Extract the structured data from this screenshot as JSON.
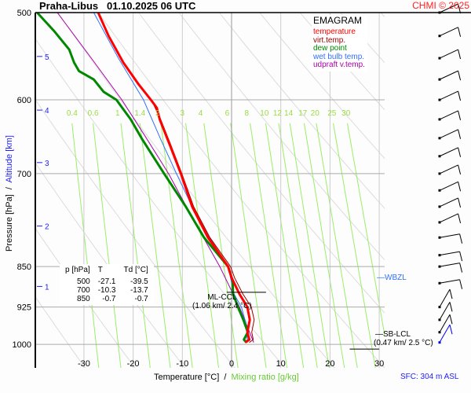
{
  "header": {
    "station": "Praha-Libus",
    "datetime": "01.10.2025 06 UTC",
    "copyright": "CHMI © 2025"
  },
  "legend": {
    "title": "EMAGRAM",
    "items": [
      {
        "label": "temperature",
        "color": "#ff0000"
      },
      {
        "label": "virt.temp.",
        "color": "#990000"
      },
      {
        "label": "dew point",
        "color": "#008800"
      },
      {
        "label": "wet bulb temp.",
        "color": "#3070ff"
      },
      {
        "label": "udpraft v.temp.",
        "color": "#aa00aa"
      }
    ]
  },
  "table": {
    "headers": [
      "p [hPa]",
      "T",
      "Td [°C]"
    ],
    "rows": [
      [
        "500",
        "-27.1",
        "-39.5"
      ],
      [
        "700",
        "-10.3",
        "-13.7"
      ],
      [
        "850",
        "-0.7",
        "-0.7"
      ]
    ]
  },
  "annotations": {
    "ml_ccl": "ML-CCL",
    "ml_ccl_val": "(1.06 km/ 2.4 °C)",
    "sb_lcl": "SB-LCL",
    "sb_lcl_val": "(0.47 km/ 2.5 °C)",
    "wbzl": "WBZL",
    "sfc": "SFC: 304 m ASL"
  },
  "chart_data": {
    "type": "line",
    "title": "EMAGRAM",
    "xlabel": "Temperature [°C]",
    "xlabel2": "Mixing ratio [g/kg]",
    "ylabel": "Pressure [hPa]",
    "ylabel2": "Altitude [km]",
    "xlim": [
      -40,
      32
    ],
    "ylim": [
      1050,
      500
    ],
    "yscale": "log",
    "xticks": [
      "-30",
      "-20",
      "-10",
      "0",
      "10",
      "20",
      "30"
    ],
    "yticks": [
      "500",
      "600",
      "700",
      "850",
      "925",
      "1000"
    ],
    "alt_ticks": [
      {
        "km": "5",
        "p": 548
      },
      {
        "km": "4",
        "p": 613
      },
      {
        "km": "3",
        "p": 684
      },
      {
        "km": "2",
        "p": 781
      },
      {
        "km": "1",
        "p": 886
      }
    ],
    "mixing_ratio_labels": [
      "0.4",
      "0.6",
      "1",
      "1.4",
      "2",
      "3",
      "4",
      "6",
      "8",
      "10",
      "12",
      "14",
      "17",
      "20",
      "25",
      "30"
    ],
    "series": [
      {
        "name": "temperature",
        "color": "#ff0000",
        "points": [
          [
            -27.1,
            500
          ],
          [
            -25,
            525
          ],
          [
            -22,
            555
          ],
          [
            -19,
            580
          ],
          [
            -16.4,
            600
          ],
          [
            -15.2,
            610
          ],
          [
            -14.6,
            625
          ],
          [
            -12.5,
            660
          ],
          [
            -10.3,
            700
          ],
          [
            -8,
            750
          ],
          [
            -4.8,
            800
          ],
          [
            -0.7,
            850
          ],
          [
            0,
            870
          ],
          [
            1.6,
            900
          ],
          [
            3.2,
            925
          ],
          [
            3.7,
            950
          ],
          [
            3.2,
            975
          ],
          [
            3.6,
            990
          ],
          [
            2.8,
            996
          ]
        ]
      },
      {
        "name": "virt.temp.",
        "color": "#990000",
        "points": [
          [
            -27,
            500
          ],
          [
            -24.9,
            525
          ],
          [
            -21.9,
            555
          ],
          [
            -18.9,
            580
          ],
          [
            -16.3,
            600
          ],
          [
            -14.4,
            625
          ],
          [
            -12.3,
            660
          ],
          [
            -10.1,
            700
          ],
          [
            -7.7,
            750
          ],
          [
            -4.4,
            800
          ],
          [
            -0.2,
            850
          ],
          [
            0.6,
            870
          ],
          [
            2.3,
            900
          ],
          [
            4,
            925
          ],
          [
            4.6,
            950
          ],
          [
            4.1,
            975
          ],
          [
            4.4,
            990
          ],
          [
            3.6,
            996
          ]
        ]
      },
      {
        "name": "dew point",
        "color": "#008800",
        "points": [
          [
            -39.5,
            500
          ],
          [
            -36,
            520
          ],
          [
            -33,
            540
          ],
          [
            -32,
            555
          ],
          [
            -31,
            565
          ],
          [
            -28,
            575
          ],
          [
            -26,
            590
          ],
          [
            -23.4,
            600
          ],
          [
            -20.5,
            625
          ],
          [
            -18.3,
            650
          ],
          [
            -15.5,
            680
          ],
          [
            -13.7,
            700
          ],
          [
            -9.3,
            750
          ],
          [
            -5.6,
            800
          ],
          [
            -0.7,
            850
          ],
          [
            0.2,
            875
          ],
          [
            0.3,
            900
          ],
          [
            1.3,
            925
          ],
          [
            2.4,
            950
          ],
          [
            3.3,
            975
          ],
          [
            2.5,
            990
          ],
          [
            3,
            996
          ]
        ]
      },
      {
        "name": "wet bulb temp.",
        "color": "#3070ff",
        "points": [
          [
            -28,
            500
          ],
          [
            -23,
            550
          ],
          [
            -17.9,
            600
          ],
          [
            -14.5,
            650
          ],
          [
            -11.2,
            700
          ],
          [
            -8,
            750
          ],
          [
            -4.5,
            800
          ],
          [
            -0.7,
            850
          ],
          [
            0.5,
            900
          ],
          [
            2,
            925
          ],
          [
            3,
            960
          ],
          [
            3.2,
            996
          ]
        ]
      },
      {
        "name": "udpraft v.temp.",
        "color": "#aa00aa",
        "points": [
          [
            -35.4,
            500
          ],
          [
            -28.5,
            550
          ],
          [
            -22.3,
            600
          ],
          [
            -17.3,
            650
          ],
          [
            -12.8,
            700
          ],
          [
            -7.8,
            770
          ],
          [
            -2.4,
            850
          ],
          [
            1.6,
            925
          ],
          [
            4.5,
            996
          ]
        ]
      }
    ],
    "wind_barbs": [
      500,
      525,
      550,
      575,
      600,
      625,
      650,
      675,
      700,
      725,
      750,
      775,
      800,
      830,
      850,
      880,
      925,
      950,
      975,
      996
    ],
    "grid": true
  }
}
